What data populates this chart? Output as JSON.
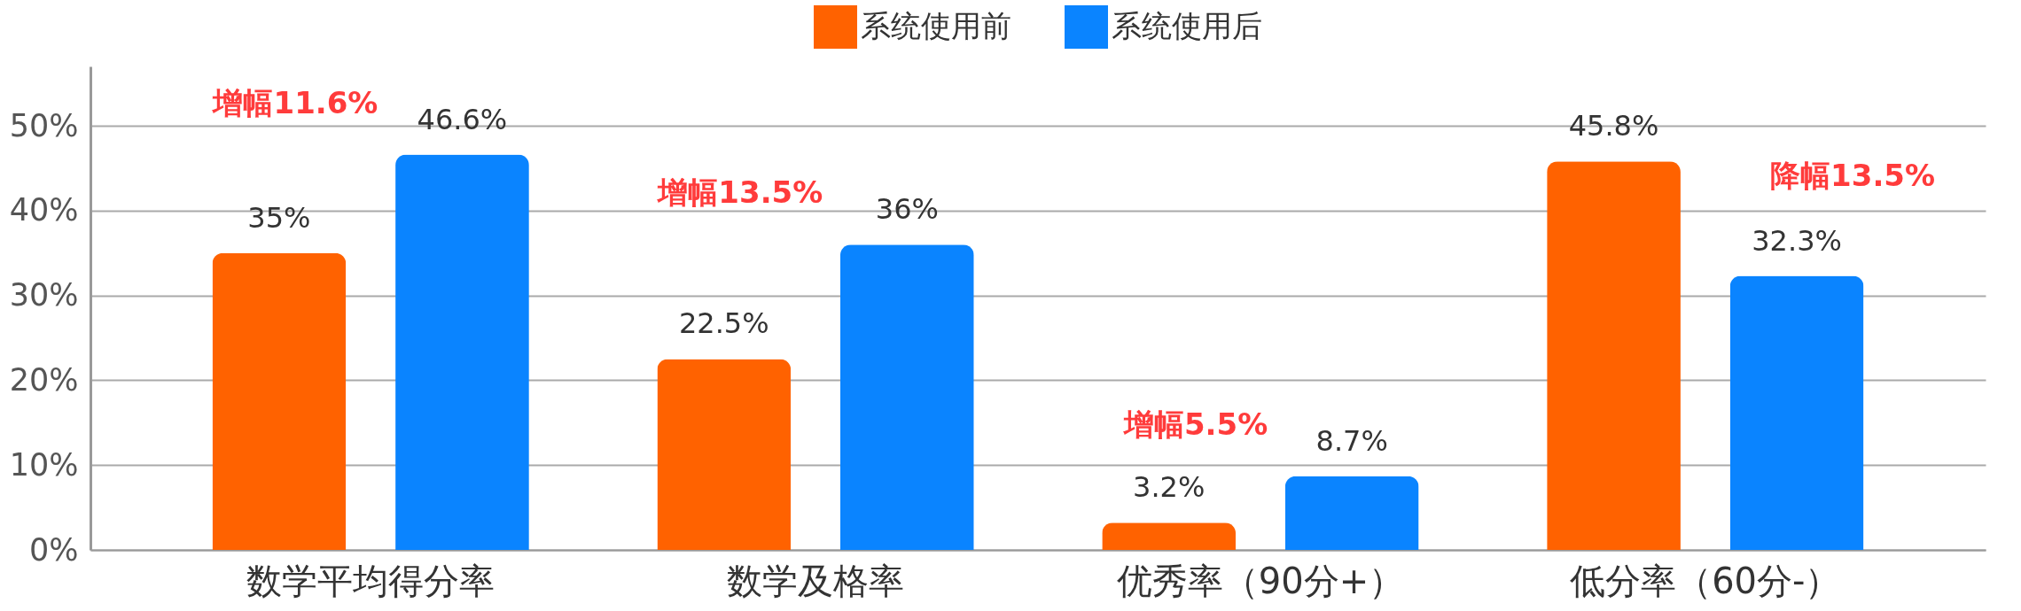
{
  "chart_data": {
    "type": "bar",
    "categories": [
      "数学平均得分率",
      "数学及格率",
      "优秀率（90分+）",
      "低分率（60分-）"
    ],
    "series": [
      {
        "name": "系统使用前",
        "color": "#ff6200",
        "values": [
          35,
          22.5,
          3.2,
          45.8
        ],
        "value_labels": [
          "35%",
          "22.5%",
          "3.2%",
          "45.8%"
        ]
      },
      {
        "name": "系统使用后",
        "color": "#0a84ff",
        "values": [
          46.6,
          36,
          8.7,
          32.3
        ],
        "value_labels": [
          "46.6%",
          "36%",
          "8.7%",
          "32.3%"
        ]
      }
    ],
    "ylim": [
      0,
      57
    ],
    "yticks": [
      {
        "value": 0,
        "label": "0%"
      },
      {
        "value": 10,
        "label": "10%"
      },
      {
        "value": 20,
        "label": "20%"
      },
      {
        "value": 30,
        "label": "30%"
      },
      {
        "value": 40,
        "label": "40%"
      },
      {
        "value": 50,
        "label": "50%"
      }
    ],
    "grid": "y",
    "legend": "top",
    "annotations": [
      "增幅11.6%",
      "增幅13.5%",
      "增幅5.5%",
      "降幅13.5%"
    ]
  }
}
